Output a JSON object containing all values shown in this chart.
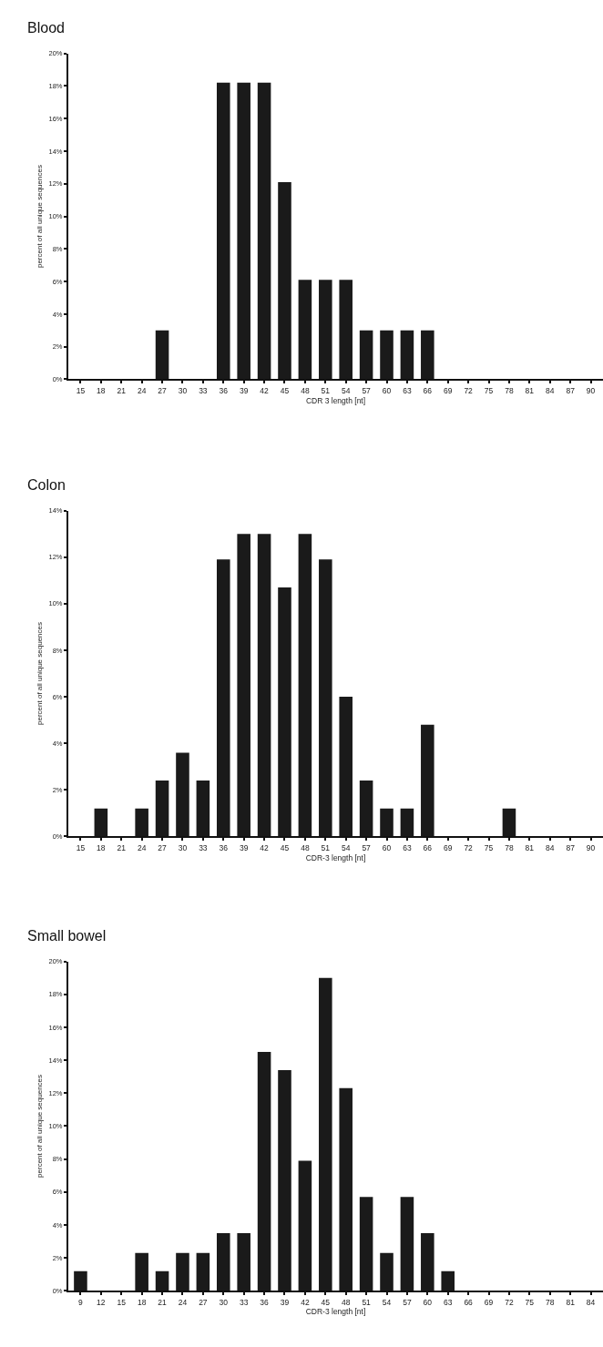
{
  "chart_data": [
    {
      "type": "bar",
      "title": "Blood",
      "xlabel": "CDR 3 length [nt]",
      "ylabel": "percent of all unique sequences",
      "color": "#1a1a1a",
      "categories": [
        "15",
        "18",
        "21",
        "24",
        "27",
        "30",
        "33",
        "36",
        "39",
        "42",
        "45",
        "48",
        "51",
        "54",
        "57",
        "60",
        "63",
        "66",
        "69",
        "72",
        "75",
        "78",
        "81",
        "84",
        "87",
        "90"
      ],
      "values": [
        0,
        0,
        0,
        0,
        3,
        0,
        0,
        18.2,
        18.2,
        18.2,
        12.1,
        6.1,
        6.1,
        6.1,
        3,
        3,
        3,
        3,
        0,
        0,
        0,
        0,
        0,
        0,
        0,
        0
      ],
      "ylim": [
        0,
        20
      ],
      "yticks": [
        {
          "value": 0,
          "label": "0%"
        },
        {
          "value": 2,
          "label": "2%"
        },
        {
          "value": 4,
          "label": "4%"
        },
        {
          "value": 6,
          "label": "6%"
        },
        {
          "value": 8,
          "label": "8%"
        },
        {
          "value": 10,
          "label": "10%"
        },
        {
          "value": 12,
          "label": "12%"
        },
        {
          "value": 14,
          "label": "14%"
        },
        {
          "value": 16,
          "label": "16%"
        },
        {
          "value": 18,
          "label": "18%"
        },
        {
          "value": 20,
          "label": "20%"
        }
      ]
    },
    {
      "type": "bar",
      "title": "Colon",
      "xlabel": "CDR-3 length [nt]",
      "ylabel": "percent of all unique sequences",
      "color": "#1a1a1a",
      "categories": [
        "15",
        "18",
        "21",
        "24",
        "27",
        "30",
        "33",
        "36",
        "39",
        "42",
        "45",
        "48",
        "51",
        "54",
        "57",
        "60",
        "63",
        "66",
        "69",
        "72",
        "75",
        "78",
        "81",
        "84",
        "87",
        "90"
      ],
      "values": [
        0,
        1.2,
        0,
        1.2,
        2.4,
        3.6,
        2.4,
        11.9,
        13,
        13,
        10.7,
        13,
        11.9,
        6,
        2.4,
        1.2,
        1.2,
        4.8,
        0,
        0,
        0,
        1.2,
        0,
        0,
        0,
        0
      ],
      "ylim": [
        0,
        14
      ],
      "yticks": [
        {
          "value": 0,
          "label": "0%"
        },
        {
          "value": 2,
          "label": "2%"
        },
        {
          "value": 4,
          "label": "4%"
        },
        {
          "value": 6,
          "label": "6%"
        },
        {
          "value": 8,
          "label": "8%"
        },
        {
          "value": 10,
          "label": "10%"
        },
        {
          "value": 12,
          "label": "12%"
        },
        {
          "value": 14,
          "label": "14%"
        }
      ]
    },
    {
      "type": "bar",
      "title": "Small bowel",
      "xlabel": "CDR-3 length [nt]",
      "ylabel": "percent of all unique sequences",
      "color": "#1a1a1a",
      "categories": [
        "9",
        "12",
        "15",
        "18",
        "21",
        "24",
        "27",
        "30",
        "33",
        "36",
        "39",
        "42",
        "45",
        "48",
        "51",
        "54",
        "57",
        "60",
        "63",
        "66",
        "69",
        "72",
        "75",
        "78",
        "81",
        "84"
      ],
      "values": [
        1.2,
        0,
        0,
        2.3,
        1.2,
        2.3,
        2.3,
        3.5,
        3.5,
        14.5,
        13.4,
        7.9,
        19,
        12.3,
        5.7,
        2.3,
        5.7,
        3.5,
        1.2,
        0,
        0,
        0,
        0,
        0,
        0,
        0
      ],
      "ylim": [
        0,
        20
      ],
      "yticks": [
        {
          "value": 0,
          "label": "0%"
        },
        {
          "value": 2,
          "label": "2%"
        },
        {
          "value": 4,
          "label": "4%"
        },
        {
          "value": 6,
          "label": "6%"
        },
        {
          "value": 8,
          "label": "8%"
        },
        {
          "value": 10,
          "label": "10%"
        },
        {
          "value": 12,
          "label": "12%"
        },
        {
          "value": 14,
          "label": "14%"
        },
        {
          "value": 16,
          "label": "16%"
        },
        {
          "value": 18,
          "label": "18%"
        },
        {
          "value": 20,
          "label": "20%"
        }
      ]
    }
  ]
}
